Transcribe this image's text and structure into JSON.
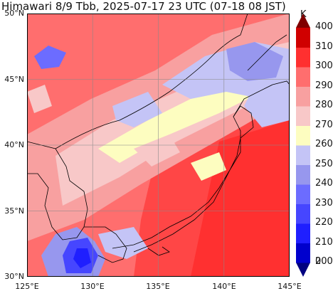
{
  "title": "Himawari 8/9 Tbb, 2025-07-17 23 UTC (07-18 08 JST)",
  "map": {
    "lat_labels": [
      "50°N",
      "45°N",
      "40°N",
      "35°N",
      "30°N"
    ],
    "lon_labels": [
      "125°E",
      "130°E",
      "135°E",
      "140°E",
      "145°E"
    ],
    "lon_range": [
      125,
      145
    ],
    "lat_range": [
      30,
      50
    ]
  },
  "colorbar": {
    "unit": "K",
    "levels": [
      "400",
      "310",
      "300",
      "290",
      "280",
      "270",
      "260",
      "250",
      "240",
      "230",
      "220",
      "210",
      "200",
      "0"
    ],
    "colors": [
      "#000080",
      "#0000cd",
      "#1f1fff",
      "#4646ff",
      "#6c6cff",
      "#9797ee",
      "#c4c4f6",
      "#fdfdc0",
      "#f8c8c8",
      "#f8a0a0",
      "#ff6e6e",
      "#ff3030",
      "#d00000",
      "#800000"
    ]
  }
}
